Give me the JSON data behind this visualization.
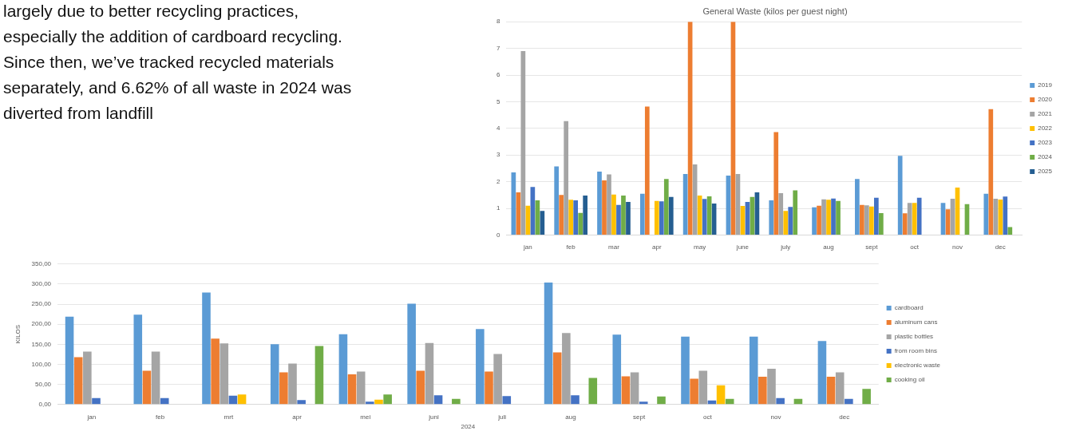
{
  "chart_data": [
    {
      "type": "other",
      "annotations": [
        "largely due to better recycling practices,",
        "especially the addition of cardboard recycling.",
        "Since then, we’ve tracked recycled materials",
        "separately, and 6.62% of all waste in 2024 was",
        "diverted from landfill"
      ]
    },
    {
      "type": "bar",
      "title": "General Waste (kilos per guest night)",
      "categories": [
        "jan",
        "feb",
        "mar",
        "apr",
        "may",
        "june",
        "july",
        "aug",
        "sept",
        "oct",
        "nov",
        "dec"
      ],
      "ylim": [
        0,
        8
      ],
      "yticks": [
        0,
        1,
        2,
        3,
        4,
        5,
        6,
        7,
        8
      ],
      "grid": "y",
      "legend": "right",
      "series": [
        {
          "name": "2019",
          "color": "#5b9bd5",
          "values": [
            2.35,
            2.57,
            2.38,
            1.55,
            2.29,
            2.23,
            1.3,
            1.04,
            2.1,
            2.97,
            1.2,
            1.55
          ]
        },
        {
          "name": "2020",
          "color": "#ed7d31",
          "values": [
            1.6,
            1.5,
            2.05,
            4.82,
            8,
            8,
            3.86,
            1.1,
            1.13,
            0.81,
            0.96,
            4.72
          ]
        },
        {
          "name": "2021",
          "color": "#a5a5a5",
          "values": [
            6.9,
            4.27,
            2.27,
            null,
            2.65,
            2.29,
            1.57,
            1.34,
            1.11,
            1.2,
            1.36,
            1.36
          ]
        },
        {
          "name": "2022",
          "color": "#ffc000",
          "values": [
            1.1,
            1.32,
            1.52,
            1.28,
            1.48,
            1.09,
            0.9,
            1.32,
            1.07,
            1.2,
            1.78,
            1.33
          ]
        },
        {
          "name": "2023",
          "color": "#4472c4",
          "values": [
            1.8,
            1.3,
            1.13,
            1.26,
            1.35,
            1.24,
            1.05,
            1.37,
            1.4,
            1.4,
            null,
            1.44
          ]
        },
        {
          "name": "2024",
          "color": "#70ad47",
          "values": [
            1.3,
            0.83,
            1.48,
            2.1,
            1.45,
            1.43,
            1.67,
            1.28,
            0.82,
            null,
            1.16,
            0.3
          ]
        },
        {
          "name": "2025",
          "color": "#255e91",
          "values": [
            0.9,
            1.48,
            1.24,
            1.43,
            1.18,
            1.6,
            null,
            null,
            null,
            null,
            null,
            null
          ]
        }
      ]
    },
    {
      "type": "bar",
      "xlabel": "2024",
      "ylabel": "KILOS",
      "categories": [
        "jan",
        "feb",
        "mrt",
        "apr",
        "mei",
        "juni",
        "juli",
        "aug",
        "sept",
        "oct",
        "nov",
        "dec"
      ],
      "ylim": [
        0,
        350
      ],
      "yticks": [
        {
          "value": 0,
          "label": "0,00"
        },
        {
          "value": 50,
          "label": "50,00"
        },
        {
          "value": 100,
          "label": "100,00"
        },
        {
          "value": 150,
          "label": "150,00"
        },
        {
          "value": 200,
          "label": "200,00"
        },
        {
          "value": 250,
          "label": "250,00"
        },
        {
          "value": 300,
          "label": "300,00"
        },
        {
          "value": 350,
          "label": "350,00"
        }
      ],
      "grid": "y",
      "legend": "right",
      "series": [
        {
          "name": "cardboard",
          "color": "#5b9bd5",
          "values": [
            219,
            224,
            279,
            150,
            175,
            251,
            188,
            304,
            174,
            169,
            169,
            158
          ]
        },
        {
          "name": "aluminum cans",
          "color": "#ed7d31",
          "values": [
            118,
            84,
            164,
            80,
            75,
            84,
            82,
            130,
            70,
            64,
            69,
            69
          ]
        },
        {
          "name": "plastic bottles",
          "color": "#a5a5a5",
          "values": [
            132,
            132,
            152,
            102,
            82,
            153,
            126,
            178,
            80,
            84,
            89,
            80
          ]
        },
        {
          "name": "from room bins",
          "color": "#4472c4",
          "values": [
            16,
            16,
            22,
            11,
            7,
            23,
            21,
            23,
            7,
            10,
            16,
            14
          ]
        },
        {
          "name": "electronic waste",
          "color": "#ffc000",
          "values": [
            null,
            null,
            25,
            null,
            12,
            null,
            null,
            null,
            null,
            48,
            null,
            null
          ]
        },
        {
          "name": "cooking oil",
          "color": "#70ad47",
          "values": [
            null,
            null,
            null,
            146,
            25,
            14,
            null,
            66,
            20,
            14,
            14,
            39
          ]
        }
      ]
    }
  ]
}
